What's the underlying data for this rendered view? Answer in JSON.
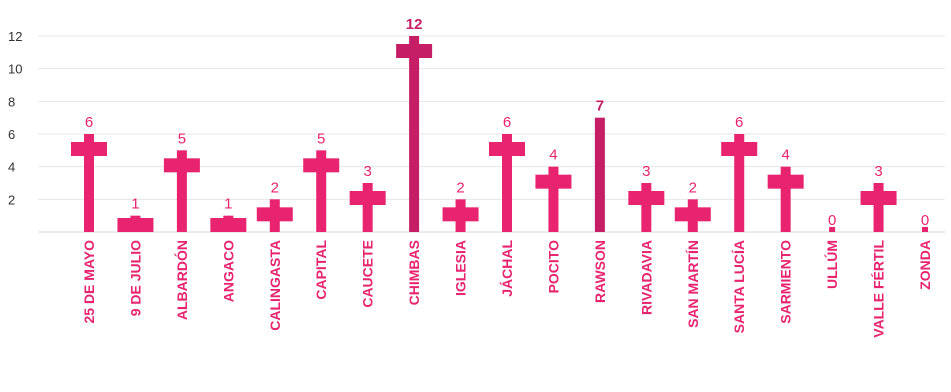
{
  "colors": {
    "accent": "#e8236f",
    "highlight": "#c51d66",
    "axis_text": "#333333",
    "grid": "#e6e6e6"
  },
  "chart_data": {
    "type": "bar",
    "title": "",
    "xlabel": "",
    "ylabel": "",
    "ylim": [
      0,
      12
    ],
    "yticks": [
      2,
      4,
      6,
      8,
      10,
      12
    ],
    "grid": true,
    "marker": "cross",
    "categories": [
      "25 DE MAYO",
      "9 DE JULIO",
      "ALBARDÓN",
      "ANGACO",
      "CALINGASTA",
      "CAPITAL",
      "CAUCETE",
      "CHIMBAS",
      "IGLESIA",
      "JÁCHAL",
      "POCITO",
      "RAWSON",
      "RIVADAVIA",
      "SAN MARTÍN",
      "SANTA LUCÍA",
      "SARMIENTO",
      "ULLÚM",
      "VALLE FÉRTIL",
      "ZONDA"
    ],
    "values": [
      6,
      1,
      5,
      1,
      2,
      5,
      3,
      12,
      2,
      6,
      4,
      7,
      3,
      2,
      6,
      4,
      0,
      3,
      0
    ],
    "value_labels": [
      "6",
      "1",
      "5",
      "1",
      "2",
      "5",
      "3",
      "12",
      "2",
      "6",
      "4",
      "7",
      "3",
      "2",
      "6",
      "4",
      "0",
      "3",
      "0"
    ],
    "highlighted": [
      "CHIMBAS",
      "RAWSON"
    ]
  }
}
